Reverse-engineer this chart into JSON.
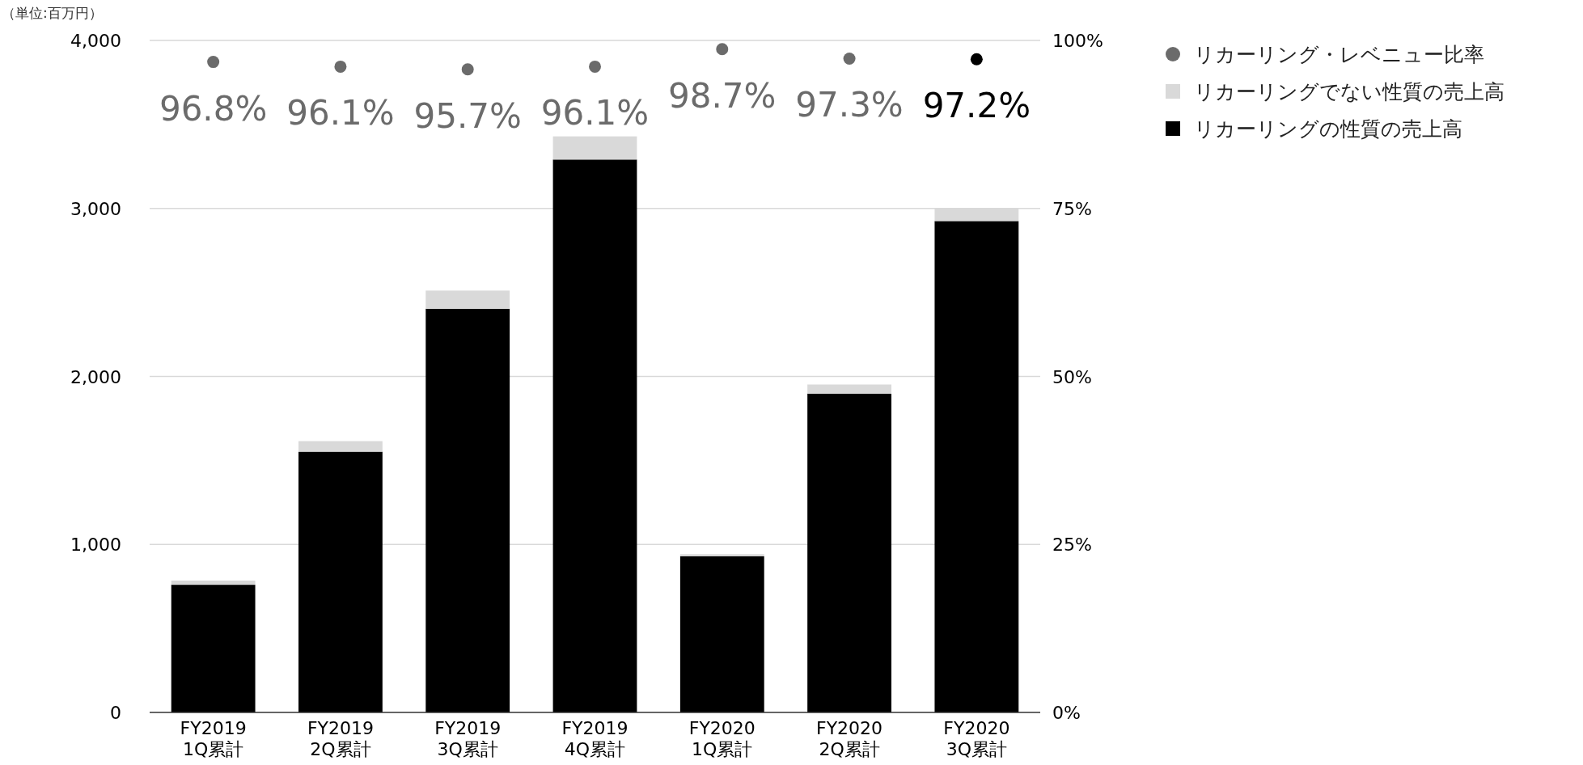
{
  "chart_data": {
    "type": "bar",
    "stacked": true,
    "legend": "right",
    "grid": "y",
    "marker": "circle",
    "annotations": [
      "（単位:百万円）"
    ],
    "categories": [
      "FY2019\n1Q累計",
      "FY2019\n2Q累計",
      "FY2019\n3Q累計",
      "FY2019\n4Q累計",
      "FY2020\n1Q累計",
      "FY2020\n2Q累計",
      "FY2020\n3Q累計"
    ],
    "ylim": [
      0,
      4000
    ],
    "yticks": [
      {
        "value": 0,
        "label": "0"
      },
      {
        "value": 1000,
        "label": "1,000"
      },
      {
        "value": 2000,
        "label": "2,000"
      },
      {
        "value": 3000,
        "label": "3,000"
      },
      {
        "value": 4000,
        "label": "4,000"
      }
    ],
    "y2lim": [
      0,
      100
    ],
    "y2ticks": [
      {
        "value": 0,
        "label": "0%"
      },
      {
        "value": 25,
        "label": "25%"
      },
      {
        "value": 50,
        "label": "50%"
      },
      {
        "value": 75,
        "label": "75%"
      },
      {
        "value": 100,
        "label": "100%"
      }
    ],
    "series": [
      {
        "name": "リカーリングの性質の売上高",
        "type": "bar",
        "color": "#000000",
        "values": [
          760,
          1552,
          2403,
          3291,
          930,
          1898,
          2925
        ]
      },
      {
        "name": "リカーリングでない性質の売上高",
        "type": "bar",
        "color": "#d9d9d9",
        "values": [
          25,
          63,
          108,
          138,
          12,
          54,
          78
        ]
      },
      {
        "name": "リカーリング・レベニュー比率",
        "type": "scatter",
        "axis": "y2",
        "color": "#6b6b6b",
        "colors": [
          "#6b6b6b",
          "#6b6b6b",
          "#6b6b6b",
          "#6b6b6b",
          "#6b6b6b",
          "#6b6b6b",
          "#000000"
        ],
        "values": [
          96.8,
          96.1,
          95.7,
          96.1,
          98.7,
          97.3,
          97.2
        ],
        "value_labels": [
          "96.8%",
          "96.1%",
          "95.7%",
          "96.1%",
          "98.7%",
          "97.3%",
          "97.2%"
        ]
      }
    ]
  }
}
